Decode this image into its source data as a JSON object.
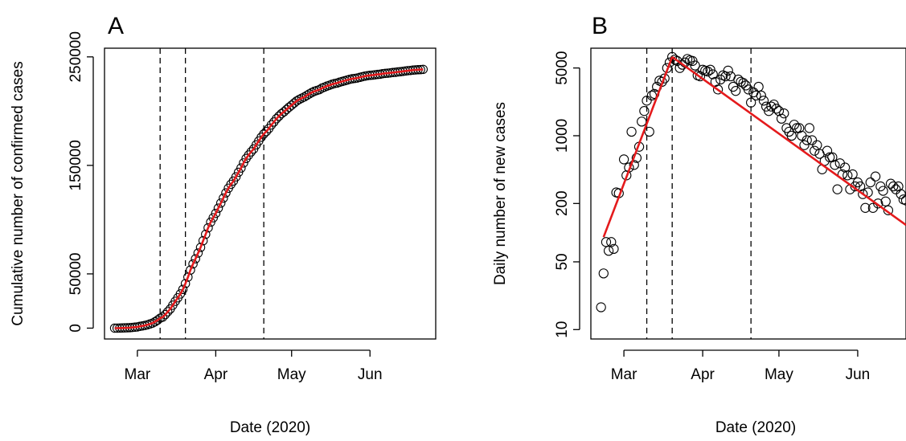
{
  "chart_data": [
    {
      "panel": "A",
      "type": "scatter",
      "xlabel": "Date (2020)",
      "ylabel": "Cumulative number of confirmed cases",
      "x_ticks": [
        "Mar",
        "Apr",
        "May",
        "Jun"
      ],
      "x_tick_dates": [
        "2020-03-01",
        "2020-04-01",
        "2020-05-01",
        "2020-06-01"
      ],
      "xlim": [
        "2020-02-17",
        "2020-06-27"
      ],
      "y_ticks": [
        0,
        50000,
        150000,
        250000
      ],
      "ylim": [
        -10000,
        258000
      ],
      "vlines": [
        "2020-03-10",
        "2020-03-20",
        "2020-04-20"
      ],
      "fit_color": "#e41a1c",
      "points_start": "2020-02-21",
      "cumulative": [
        3,
        20,
        79,
        150,
        227,
        320,
        445,
        650,
        888,
        1128,
        1694,
        2036,
        2502,
        3089,
        3858,
        4636,
        5883,
        7375,
        9172,
        10149,
        12462,
        15113,
        17660,
        21157,
        24747,
        27980,
        31506,
        35713,
        41035,
        47021,
        53578,
        59138,
        63927,
        69176,
        74386,
        80589,
        86498,
        92472,
        97689,
        101739,
        105792,
        110574,
        115242,
        119827,
        124632,
        128948,
        132547,
        135586,
        139422,
        143626,
        147577,
        152271,
        156363,
        159516,
        162488,
        165155,
        168941,
        172434,
        175925,
        178972,
        181228,
        183957,
        187327,
        189973,
        192994,
        195351,
        197675,
        199414,
        201505,
        203591,
        205463,
        207428,
        209328,
        210717,
        211938,
        213013,
        214457,
        215858,
        217185,
        218268,
        219070,
        219814,
        221216,
        222104,
        223096,
        223885,
        224760,
        225435,
        225886,
        226699,
        227364,
        228006,
        228658,
        229327,
        229858,
        230158,
        230555,
        231139,
        231732,
        232248,
        232664,
        232997,
        233197,
        233515,
        233836,
        234013,
        234531,
        234801,
        234998,
        235278,
        235561,
        235763,
        236142,
        236305,
        236651,
        236989,
        237290,
        237500,
        237828,
        238011,
        238159,
        238275,
        238499
      ]
    },
    {
      "panel": "B",
      "type": "scatter",
      "xlabel": "Date (2020)",
      "ylabel": "Daily number of new cases",
      "y_scale": "log",
      "x_ticks": [
        "Mar",
        "Apr",
        "May",
        "Jun"
      ],
      "x_tick_dates": [
        "2020-03-01",
        "2020-04-01",
        "2020-05-01",
        "2020-06-01"
      ],
      "xlim": [
        "2020-02-17",
        "2020-06-20"
      ],
      "y_ticks": [
        10,
        50,
        200,
        1000,
        5000
      ],
      "ylim": [
        8,
        8000
      ],
      "vlines": [
        "2020-03-10",
        "2020-03-20",
        "2020-04-20"
      ],
      "fit_color": "#e41a1c",
      "fit_segments": [
        {
          "from": [
            "2020-02-22",
            90
          ],
          "to": [
            "2020-03-20",
            6500
          ]
        },
        {
          "from": [
            "2020-03-20",
            6500
          ],
          "to": [
            "2020-06-20",
            120
          ]
        }
      ],
      "daily_points": [
        [
          "2020-02-21",
          17
        ],
        [
          "2020-02-22",
          38
        ],
        [
          "2020-02-23",
          80
        ],
        [
          "2020-02-24",
          65
        ],
        [
          "2020-02-25",
          80
        ],
        [
          "2020-02-26",
          68
        ],
        [
          "2020-02-27",
          260
        ],
        [
          "2020-02-28",
          255
        ],
        [
          "2020-03-01",
          570
        ],
        [
          "2020-03-02",
          390
        ],
        [
          "2020-03-03",
          470
        ],
        [
          "2020-03-04",
          1100
        ],
        [
          "2020-03-05",
          500
        ],
        [
          "2020-03-06",
          590
        ],
        [
          "2020-03-07",
          770
        ],
        [
          "2020-03-08",
          1400
        ],
        [
          "2020-03-09",
          1800
        ],
        [
          "2020-03-10",
          2300
        ],
        [
          "2020-03-11",
          1100
        ],
        [
          "2020-03-12",
          2600
        ],
        [
          "2020-03-13",
          2700
        ],
        [
          "2020-03-14",
          3200
        ],
        [
          "2020-03-15",
          3700
        ],
        [
          "2020-03-16",
          3600
        ],
        [
          "2020-03-17",
          3900
        ],
        [
          "2020-03-18",
          5000
        ],
        [
          "2020-03-19",
          5700
        ],
        [
          "2020-03-20",
          6500
        ],
        [
          "2020-03-21",
          6100
        ],
        [
          "2020-03-22",
          5900
        ],
        [
          "2020-03-23",
          5000
        ],
        [
          "2020-03-24",
          5400
        ],
        [
          "2020-03-25",
          5700
        ],
        [
          "2020-03-26",
          6200
        ],
        [
          "2020-03-27",
          6000
        ],
        [
          "2020-03-28",
          5900
        ],
        [
          "2020-03-29",
          5300
        ],
        [
          "2020-03-30",
          4200
        ],
        [
          "2020-03-31",
          4100
        ],
        [
          "2020-04-01",
          4800
        ],
        [
          "2020-04-02",
          4700
        ],
        [
          "2020-04-03",
          4600
        ],
        [
          "2020-04-04",
          4800
        ],
        [
          "2020-04-05",
          4300
        ],
        [
          "2020-04-06",
          3600
        ],
        [
          "2020-04-07",
          3000
        ],
        [
          "2020-04-08",
          3800
        ],
        [
          "2020-04-09",
          4200
        ],
        [
          "2020-04-10",
          4100
        ],
        [
          "2020-04-11",
          4700
        ],
        [
          "2020-04-12",
          4100
        ],
        [
          "2020-04-13",
          3200
        ],
        [
          "2020-04-14",
          2900
        ],
        [
          "2020-04-15",
          3800
        ],
        [
          "2020-04-16",
          3600
        ],
        [
          "2020-04-17",
          3500
        ],
        [
          "2020-04-18",
          3300
        ],
        [
          "2020-04-19",
          3000
        ],
        [
          "2020-04-20",
          2200
        ],
        [
          "2020-04-21",
          2800
        ],
        [
          "2020-04-22",
          2600
        ],
        [
          "2020-04-23",
          3200
        ],
        [
          "2020-04-24",
          2600
        ],
        [
          "2020-04-25",
          2300
        ],
        [
          "2020-04-26",
          2000
        ],
        [
          "2020-04-27",
          1800
        ],
        [
          "2020-04-28",
          2000
        ],
        [
          "2020-04-29",
          2100
        ],
        [
          "2020-04-30",
          1900
        ],
        [
          "2020-05-01",
          1800
        ],
        [
          "2020-05-02",
          1500
        ],
        [
          "2020-05-03",
          1700
        ],
        [
          "2020-05-04",
          1200
        ],
        [
          "2020-05-05",
          1100
        ],
        [
          "2020-05-06",
          1000
        ],
        [
          "2020-05-07",
          1300
        ],
        [
          "2020-05-08",
          1200
        ],
        [
          "2020-05-09",
          1200
        ],
        [
          "2020-05-10",
          1000
        ],
        [
          "2020-05-11",
          800
        ],
        [
          "2020-05-12",
          900
        ],
        [
          "2020-05-13",
          1200
        ],
        [
          "2020-05-14",
          900
        ],
        [
          "2020-05-15",
          700
        ],
        [
          "2020-05-16",
          800
        ],
        [
          "2020-05-17",
          650
        ],
        [
          "2020-05-18",
          450
        ],
        [
          "2020-05-19",
          550
        ],
        [
          "2020-05-20",
          700
        ],
        [
          "2020-05-21",
          600
        ],
        [
          "2020-05-22",
          600
        ],
        [
          "2020-05-23",
          500
        ],
        [
          "2020-05-24",
          280
        ],
        [
          "2020-05-25",
          520
        ],
        [
          "2020-05-26",
          400
        ],
        [
          "2020-05-27",
          470
        ],
        [
          "2020-05-28",
          390
        ],
        [
          "2020-05-29",
          280
        ],
        [
          "2020-05-30",
          400
        ],
        [
          "2020-05-31",
          300
        ],
        [
          "2020-06-01",
          330
        ],
        [
          "2020-06-02",
          300
        ],
        [
          "2020-06-03",
          250
        ],
        [
          "2020-06-04",
          180
        ],
        [
          "2020-06-05",
          260
        ],
        [
          "2020-06-06",
          330
        ],
        [
          "2020-06-07",
          180
        ],
        [
          "2020-06-08",
          380
        ],
        [
          "2020-06-09",
          200
        ],
        [
          "2020-06-10",
          300
        ],
        [
          "2020-06-11",
          270
        ],
        [
          "2020-06-12",
          210
        ],
        [
          "2020-06-13",
          170
        ],
        [
          "2020-06-14",
          320
        ],
        [
          "2020-06-15",
          300
        ],
        [
          "2020-06-16",
          280
        ],
        [
          "2020-06-17",
          300
        ],
        [
          "2020-06-18",
          250
        ],
        [
          "2020-06-19",
          220
        ],
        [
          "2020-06-20",
          215
        ]
      ]
    }
  ]
}
